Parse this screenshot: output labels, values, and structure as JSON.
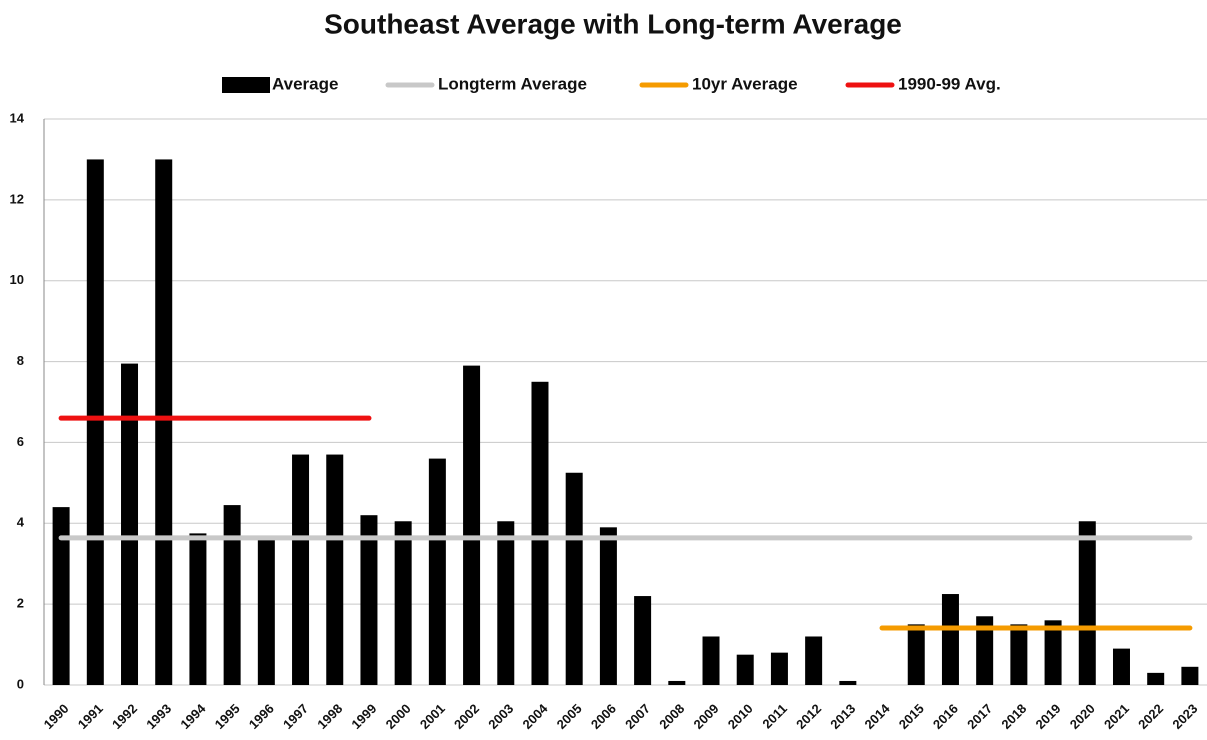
{
  "chart_data": {
    "type": "bar",
    "title": "Southeast Average with Long-term Average",
    "categories": [
      "1990",
      "1991",
      "1992",
      "1993",
      "1994",
      "1995",
      "1996",
      "1997",
      "1998",
      "1999",
      "2000",
      "2001",
      "2002",
      "2003",
      "2004",
      "2005",
      "2006",
      "2007",
      "2008",
      "2009",
      "2010",
      "2011",
      "2012",
      "2013",
      "2014",
      "2015",
      "2016",
      "2017",
      "2018",
      "2019",
      "2020",
      "2021",
      "2022",
      "2023"
    ],
    "series": [
      {
        "name": "Average",
        "type": "bar",
        "color": "#000000",
        "values": [
          4.4,
          13,
          7.95,
          13,
          3.75,
          4.45,
          3.6,
          5.7,
          5.7,
          4.2,
          4.05,
          5.6,
          7.9,
          4.05,
          7.5,
          5.25,
          3.9,
          2.2,
          0.1,
          1.2,
          0.75,
          0.8,
          1.2,
          0.1,
          0,
          1.5,
          2.25,
          1.7,
          1.5,
          1.6,
          4.05,
          0.9,
          0.3,
          0.45
        ]
      },
      {
        "name": "Longterm Average",
        "type": "line",
        "color": "#c8c8c8",
        "values": [
          3.64,
          3.64,
          3.64,
          3.64,
          3.64,
          3.64,
          3.64,
          3.64,
          3.64,
          3.64,
          3.64,
          3.64,
          3.64,
          3.64,
          3.64,
          3.64,
          3.64,
          3.64,
          3.64,
          3.64,
          3.64,
          3.64,
          3.64,
          3.64,
          3.64,
          3.64,
          3.64,
          3.64,
          3.64,
          3.64,
          3.64,
          3.64,
          3.64,
          3.64
        ]
      },
      {
        "name": "10yr Average",
        "type": "line",
        "color": "#f59b00",
        "values": [
          null,
          null,
          null,
          null,
          null,
          null,
          null,
          null,
          null,
          null,
          null,
          null,
          null,
          null,
          null,
          null,
          null,
          null,
          null,
          null,
          null,
          null,
          null,
          null,
          1.41,
          1.41,
          1.41,
          1.41,
          1.41,
          1.41,
          1.41,
          1.41,
          1.41,
          1.41
        ]
      },
      {
        "name": "1990-99 Avg.",
        "type": "line",
        "color": "#ee1111",
        "values": [
          6.6,
          6.6,
          6.6,
          6.6,
          6.6,
          6.6,
          6.6,
          6.6,
          6.6,
          6.6,
          null,
          null,
          null,
          null,
          null,
          null,
          null,
          null,
          null,
          null,
          null,
          null,
          null,
          null,
          null,
          null,
          null,
          null,
          null,
          null,
          null,
          null,
          null,
          null
        ]
      }
    ],
    "ylim": [
      0,
      14
    ],
    "yticks": [
      0,
      2,
      4,
      6,
      8,
      10,
      12,
      14
    ],
    "grid": true
  }
}
